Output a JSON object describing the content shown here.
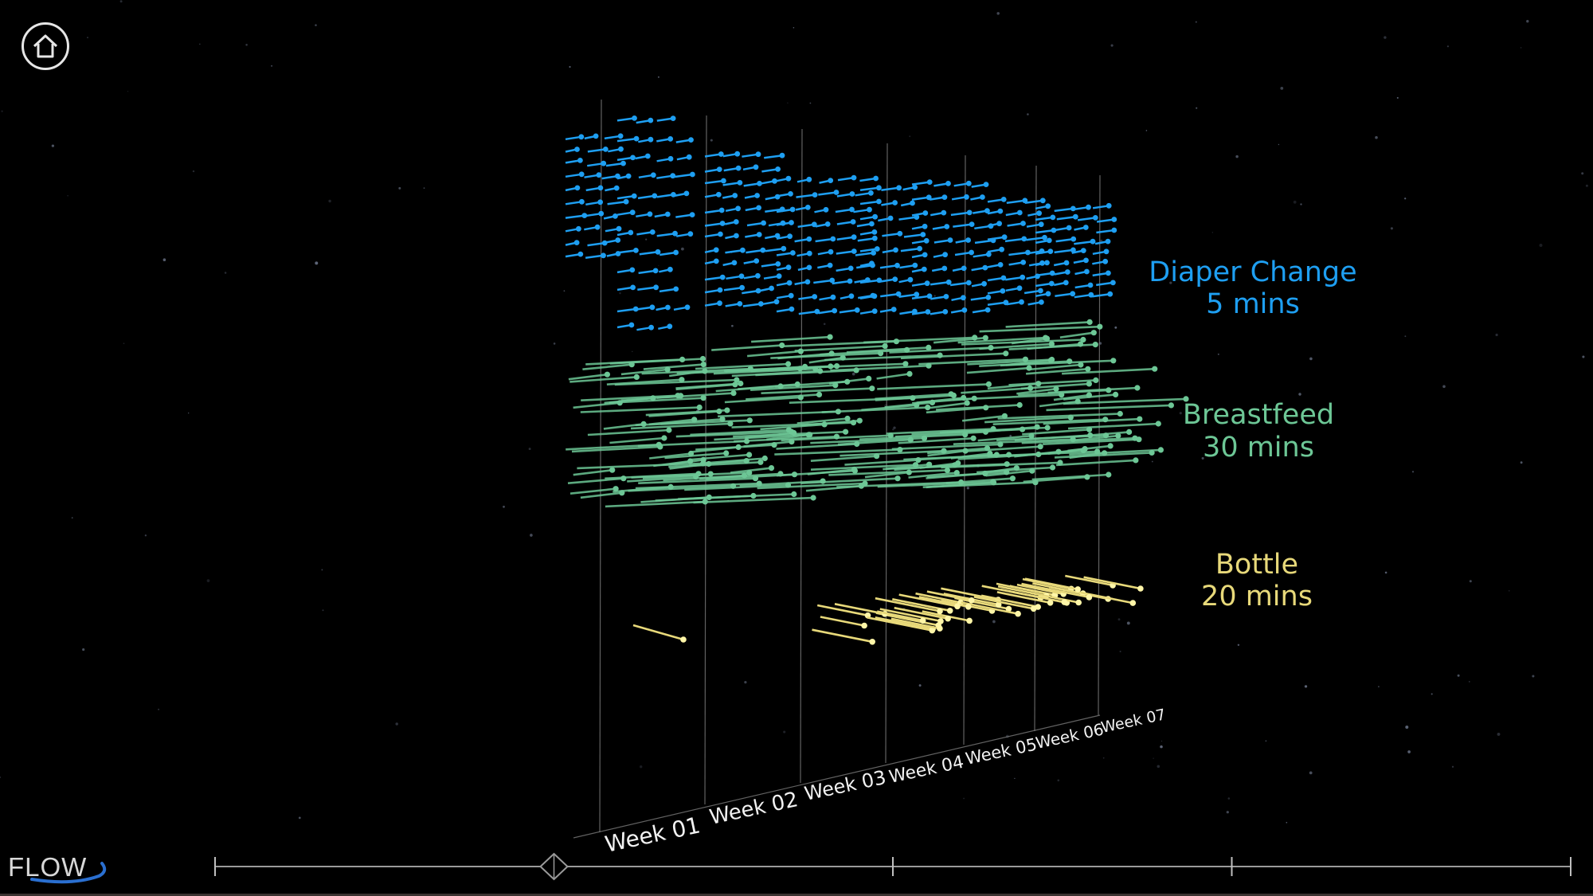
{
  "app": {
    "logo_text": "FLOW"
  },
  "chart_data": {
    "type": "scatter",
    "x_axis": {
      "tick_labels": [
        "Week 01",
        "Week 02",
        "Week 03",
        "Week 04",
        "Week 05",
        "Week 06",
        "Week 07"
      ]
    },
    "series": [
      {
        "name": "Diaper Change",
        "duration": "5 mins",
        "color": "#1e9ff2"
      },
      {
        "name": "Breastfeed",
        "duration": "30 mins",
        "color": "#6dc796"
      },
      {
        "name": "Bottle",
        "duration": "20 mins",
        "color": "#e8d97a"
      }
    ]
  },
  "timeline": {
    "ticks": [
      0,
      0.5,
      0.75,
      1
    ],
    "playhead": 0.25
  }
}
